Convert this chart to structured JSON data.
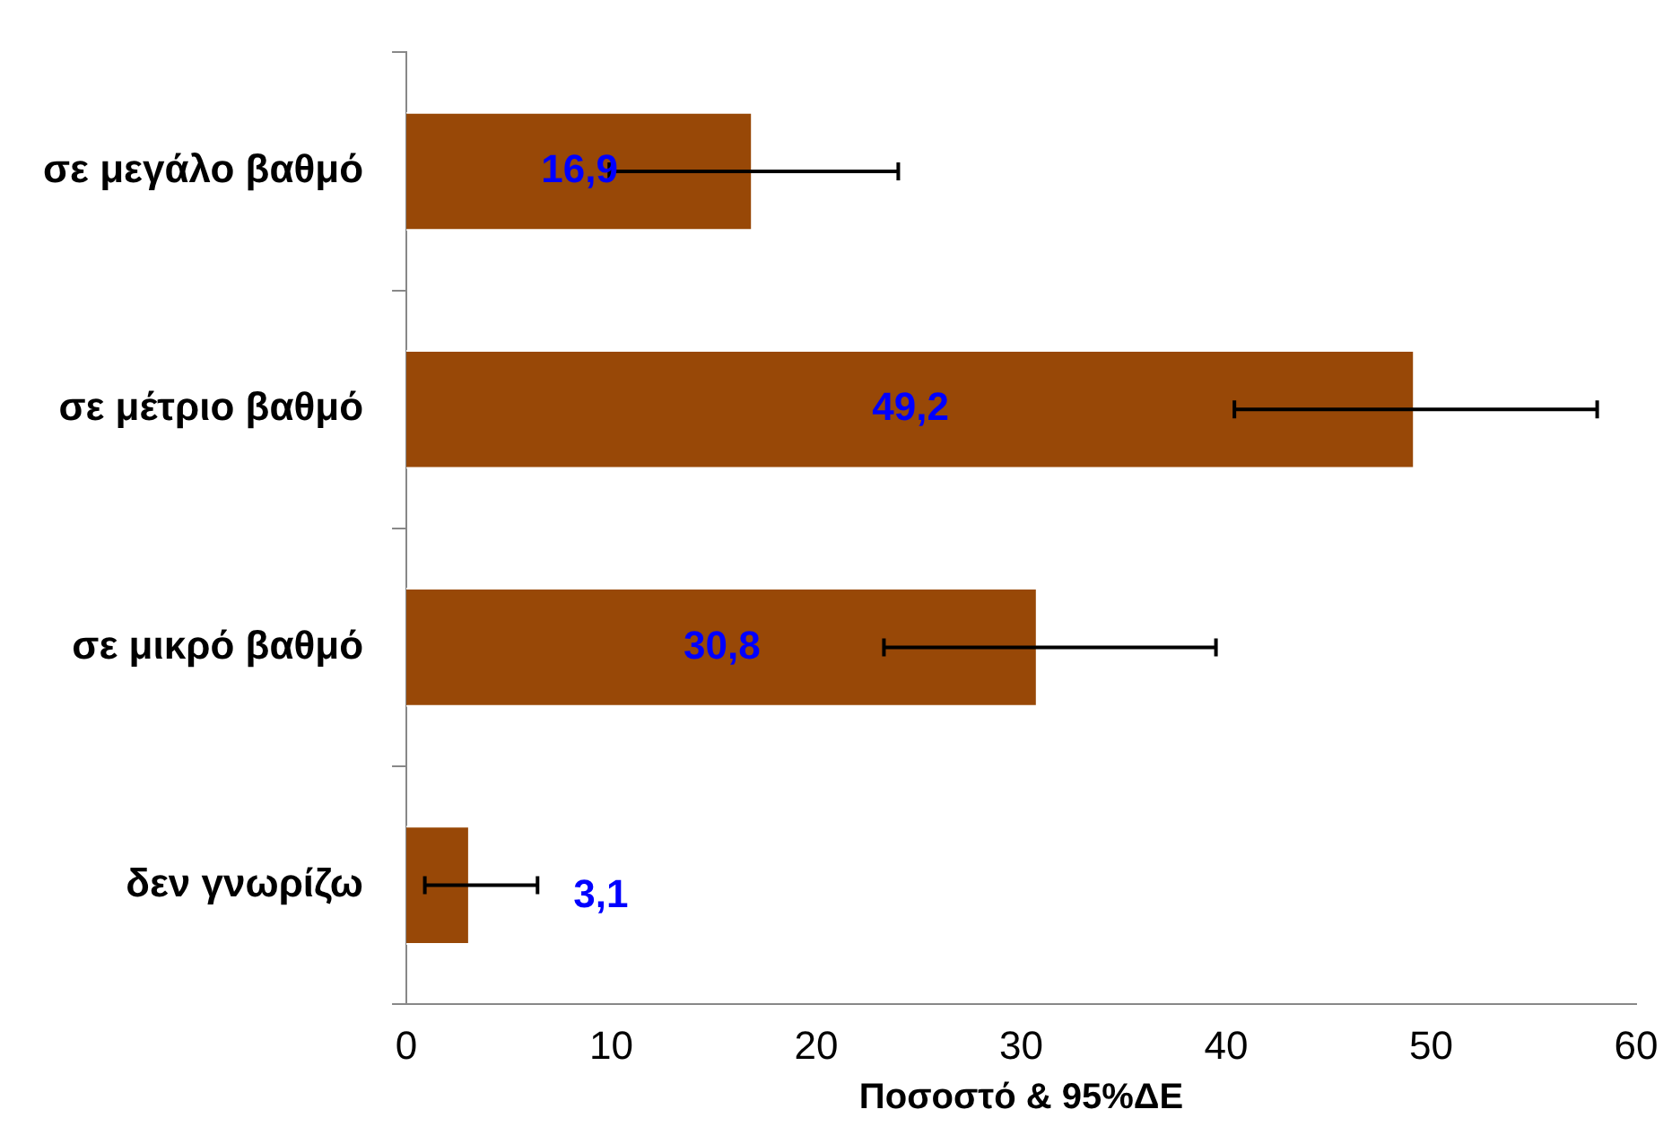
{
  "chart_data": {
    "type": "bar",
    "orientation": "horizontal",
    "xlabel": "Ποσοστό & 95%ΔΕ",
    "categories": [
      "σε μεγάλο βαθμό",
      "σε μέτριο βαθμό",
      "σε μικρό βαθμό",
      "δεν γνωρίζω"
    ],
    "values": [
      16.9,
      49.2,
      30.8,
      3.1
    ],
    "color": "#984807",
    "errors": [
      [
        9.9,
        24.0
      ],
      [
        40.4,
        58.1
      ],
      [
        23.3,
        39.5
      ],
      [
        0.9,
        6.4
      ]
    ],
    "xlim": [
      0,
      60
    ],
    "xticks": [
      0,
      10,
      20,
      30,
      40,
      50,
      60
    ],
    "grid": false,
    "legend": false,
    "value_labels": [
      "16,9",
      "49,2",
      "30,8",
      "3,1"
    ]
  }
}
